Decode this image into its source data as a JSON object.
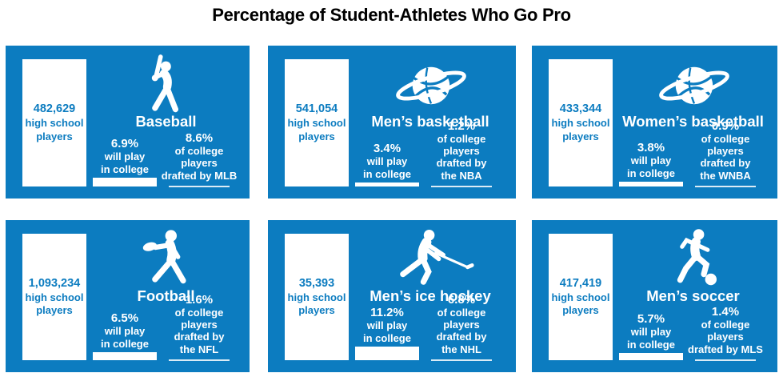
{
  "title": "Percentage of Student-Athletes Who Go Pro",
  "colors": {
    "panel_blue": "#0c7cc0",
    "bar_white": "#ffffff",
    "title_black": "#000000"
  },
  "panels": [
    {
      "sport": "Baseball",
      "icon": "baseball-batter-icon",
      "high_school": {
        "count": "482,629",
        "line1": "high school",
        "line2": "players"
      },
      "college": {
        "pct": "6.9%",
        "pct_value": 6.9,
        "line1": "will play",
        "line2": "in college"
      },
      "draft": {
        "pct": "8.6%",
        "pct_value": 8.6,
        "lines": [
          "of college players",
          "drafted by MLB"
        ]
      }
    },
    {
      "sport": "Men’s basketball",
      "icon": "basketball-icon",
      "high_school": {
        "count": "541,054",
        "line1": "high school",
        "line2": "players"
      },
      "college": {
        "pct": "3.4%",
        "pct_value": 3.4,
        "line1": "will play",
        "line2": "in college"
      },
      "draft": {
        "pct": "1.2%",
        "pct_value": 1.2,
        "lines": [
          "of college players",
          "drafted by",
          "the NBA"
        ]
      }
    },
    {
      "sport": "Women’s basketball",
      "icon": "basketball-icon",
      "high_school": {
        "count": "433,344",
        "line1": "high school",
        "line2": "players"
      },
      "college": {
        "pct": "3.8%",
        "pct_value": 3.8,
        "line1": "will play",
        "line2": "in college"
      },
      "draft": {
        "pct": "0.9%",
        "pct_value": 0.9,
        "lines": [
          "of college players",
          "drafted by",
          "the WNBA"
        ]
      }
    },
    {
      "sport": "Football",
      "icon": "football-player-icon",
      "high_school": {
        "count": "1,093,234",
        "line1": "high school",
        "line2": "players"
      },
      "college": {
        "pct": "6.5%",
        "pct_value": 6.5,
        "line1": "will play",
        "line2": "in college"
      },
      "draft": {
        "pct": "1.6%",
        "pct_value": 1.6,
        "lines": [
          "of college players",
          "drafted by",
          "the NFL"
        ]
      }
    },
    {
      "sport": "Men’s ice hockey",
      "icon": "hockey-player-icon",
      "high_school": {
        "count": "35,393",
        "line1": "high school",
        "line2": "players"
      },
      "college": {
        "pct": "11.2%",
        "pct_value": 11.2,
        "line1": "will play",
        "line2": "in college"
      },
      "draft": {
        "pct": "6.8%",
        "pct_value": 6.8,
        "lines": [
          "of college players",
          "drafted by",
          "the NHL"
        ]
      }
    },
    {
      "sport": "Men’s soccer",
      "icon": "soccer-player-icon",
      "high_school": {
        "count": "417,419",
        "line1": "high school",
        "line2": "players"
      },
      "college": {
        "pct": "5.7%",
        "pct_value": 5.7,
        "line1": "will play",
        "line2": "in college"
      },
      "draft": {
        "pct": "1.4%",
        "pct_value": 1.4,
        "lines": [
          "of college players",
          "drafted by MLS"
        ]
      }
    }
  ],
  "chart_data": {
    "type": "bar",
    "title": "Percentage of Student-Athletes Who Go Pro",
    "categories": [
      "Baseball",
      "Men's basketball",
      "Women's basketball",
      "Football",
      "Men's ice hockey",
      "Men's soccer"
    ],
    "series": [
      {
        "name": "High school players (count)",
        "values": [
          482629,
          541054,
          433344,
          1093234,
          35393,
          417419
        ]
      },
      {
        "name": "% of high school players who will play in college",
        "values": [
          6.9,
          3.4,
          3.8,
          6.5,
          11.2,
          5.7
        ]
      },
      {
        "name": "% of college players drafted by pro league",
        "values": [
          8.6,
          1.2,
          0.9,
          1.6,
          6.8,
          1.4
        ]
      }
    ],
    "drafting_leagues": [
      "MLB",
      "NBA",
      "WNBA",
      "NFL",
      "NHL",
      "MLS"
    ],
    "layout": "2 rows x 3 columns of panels, white bars on blue panels",
    "ylim": [
      0,
      100
    ]
  }
}
